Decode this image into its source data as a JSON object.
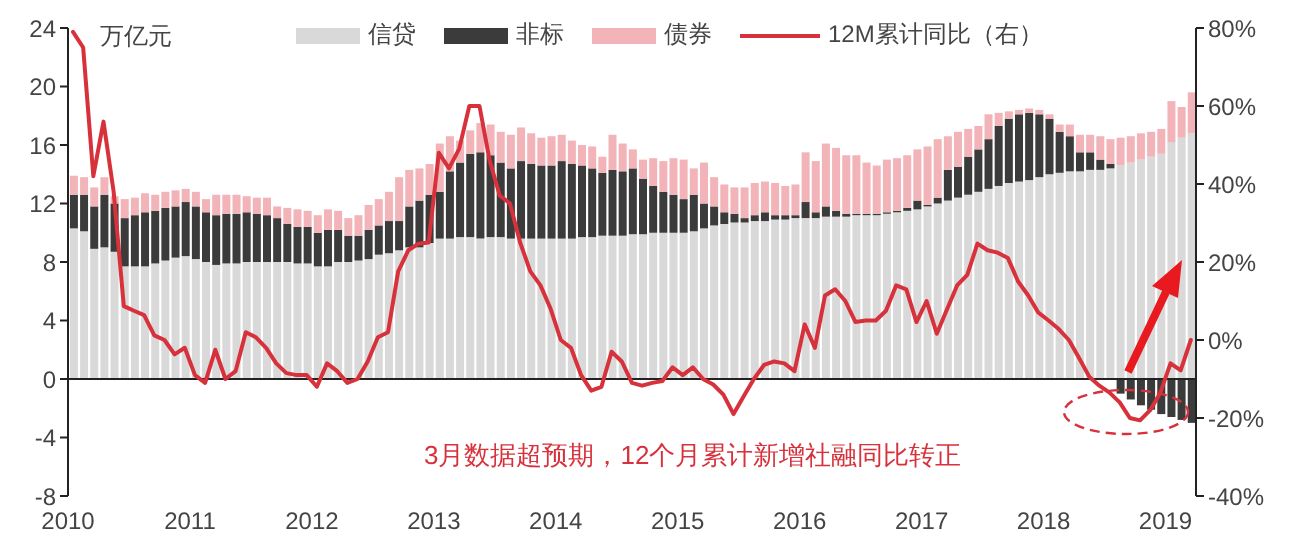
{
  "chart_data": {
    "type": "bar",
    "stacked": true,
    "ylabel": "万亿元",
    "legend": "top",
    "marker": "none",
    "line_style": "solid",
    "annotations": [
      "3月数据超预期，12个月累计新增社融同比转正"
    ],
    "x": [
      "2010-01-16",
      "2010-02-16",
      "2010-03-16",
      "2010-04-16",
      "2010-05-16",
      "2010-06-16",
      "2010-07-16",
      "2010-08-16",
      "2010-09-16",
      "2010-10-16",
      "2010-11-16",
      "2010-12-16",
      "2011-01-16",
      "2011-02-16",
      "2011-03-16",
      "2011-04-16",
      "2011-05-16",
      "2011-06-16",
      "2011-07-16",
      "2011-08-16",
      "2011-09-16",
      "2011-10-16",
      "2011-11-16",
      "2011-12-16",
      "2012-01-16",
      "2012-02-16",
      "2012-03-16",
      "2012-04-16",
      "2012-05-16",
      "2012-06-16",
      "2012-07-16",
      "2012-08-16",
      "2012-09-16",
      "2012-10-16",
      "2012-11-16",
      "2012-12-16",
      "2013-01-16",
      "2013-02-16",
      "2013-03-16",
      "2013-04-16",
      "2013-05-16",
      "2013-06-16",
      "2013-07-16",
      "2013-08-16",
      "2013-09-16",
      "2013-10-16",
      "2013-11-16",
      "2013-12-16",
      "2014-01-16",
      "2014-02-16",
      "2014-03-16",
      "2014-04-16",
      "2014-05-16",
      "2014-06-16",
      "2014-07-16",
      "2014-08-16",
      "2014-09-16",
      "2014-10-16",
      "2014-11-16",
      "2014-12-16",
      "2015-01-16",
      "2015-02-16",
      "2015-03-16",
      "2015-04-16",
      "2015-05-16",
      "2015-06-16",
      "2015-07-16",
      "2015-08-16",
      "2015-09-16",
      "2015-10-16",
      "2015-11-16",
      "2015-12-16",
      "2016-01-16",
      "2016-02-16",
      "2016-03-16",
      "2016-04-16",
      "2016-05-16",
      "2016-06-16",
      "2016-07-16",
      "2016-08-16",
      "2016-09-16",
      "2016-10-16",
      "2016-11-16",
      "2016-12-16",
      "2017-01-16",
      "2017-02-16",
      "2017-03-16",
      "2017-04-16",
      "2017-05-16",
      "2017-06-16",
      "2017-07-16",
      "2017-08-16",
      "2017-09-16",
      "2017-10-16",
      "2017-11-16",
      "2017-12-16",
      "2018-01-16",
      "2018-02-16",
      "2018-03-16",
      "2018-04-16",
      "2018-05-16",
      "2018-06-16",
      "2018-07-16",
      "2018-08-16",
      "2018-09-16",
      "2018-10-16",
      "2018-11-16",
      "2018-12-16",
      "2019-01-16",
      "2019-02-16",
      "2019-03-16"
    ],
    "xlim": [
      "2010-01",
      "2019-04"
    ],
    "xticks": [
      "2010",
      "2011",
      "2012",
      "2013",
      "2014",
      "2015",
      "2016",
      "2017",
      "2018",
      "2019"
    ],
    "ylim": [
      -8,
      24
    ],
    "yticks": [
      -8,
      -4,
      0,
      4,
      8,
      12,
      16,
      20,
      24
    ],
    "y2lim": [
      -40,
      80
    ],
    "y2ticks": [
      {
        "value": -40,
        "label": "-40%"
      },
      {
        "value": -20,
        "label": "-20%"
      },
      {
        "value": 0,
        "label": "0%"
      },
      {
        "value": 20,
        "label": "20%"
      },
      {
        "value": 40,
        "label": "40%"
      },
      {
        "value": 60,
        "label": "60%"
      },
      {
        "value": 80,
        "label": "80%"
      }
    ],
    "series": [
      {
        "name": "信贷",
        "color": "#d9d9d9",
        "values": [
          10.3,
          10.1,
          8.9,
          9.0,
          8.7,
          7.7,
          7.7,
          7.7,
          7.9,
          8.1,
          8.3,
          8.4,
          8.2,
          8.0,
          7.8,
          7.9,
          7.9,
          8.0,
          8.0,
          8.0,
          8.0,
          8.0,
          7.9,
          7.9,
          7.7,
          7.7,
          8.0,
          8.0,
          8.1,
          8.2,
          8.5,
          8.6,
          8.8,
          9.0,
          9.0,
          9.3,
          9.6,
          9.6,
          9.7,
          9.7,
          9.6,
          9.7,
          9.7,
          9.6,
          9.6,
          9.6,
          9.6,
          9.6,
          9.6,
          9.6,
          9.7,
          9.7,
          9.8,
          9.8,
          9.8,
          9.9,
          9.9,
          10.0,
          10.0,
          10.0,
          10.0,
          10.1,
          10.3,
          10.5,
          10.6,
          10.7,
          10.7,
          10.8,
          10.8,
          10.9,
          10.9,
          11.0,
          11.0,
          11.0,
          11.1,
          11.1,
          11.1,
          11.2,
          11.2,
          11.2,
          11.3,
          11.4,
          11.5,
          11.6,
          11.8,
          12.0,
          12.2,
          12.4,
          12.6,
          12.8,
          13.0,
          13.2,
          13.4,
          13.5,
          13.6,
          13.8,
          14.0,
          14.1,
          14.2,
          14.2,
          14.3,
          14.3,
          14.4,
          14.6,
          14.8,
          15.0,
          15.2,
          15.4,
          16.2,
          16.5,
          16.8
        ]
      },
      {
        "name": "非标",
        "color": "#3b3b3b",
        "values": [
          2.3,
          2.5,
          2.9,
          3.6,
          3.3,
          3.3,
          3.5,
          3.7,
          3.6,
          3.6,
          3.5,
          3.7,
          3.6,
          3.4,
          3.4,
          3.4,
          3.4,
          3.4,
          3.3,
          3.2,
          3.0,
          2.6,
          2.5,
          2.5,
          2.3,
          2.5,
          2.2,
          1.8,
          1.7,
          2.0,
          2.0,
          2.2,
          2.0,
          2.8,
          3.2,
          3.3,
          3.2,
          4.6,
          5.1,
          5.7,
          5.9,
          5.6,
          5.1,
          4.8,
          5.3,
          5.1,
          5.0,
          5.0,
          5.3,
          5.1,
          4.9,
          4.7,
          4.3,
          4.5,
          4.4,
          4.5,
          3.8,
          3.2,
          2.8,
          2.6,
          2.3,
          2.5,
          1.7,
          1.3,
          0.8,
          0.6,
          0.3,
          0.4,
          0.6,
          0.3,
          0.3,
          0.2,
          1.1,
          0.4,
          0.7,
          0.4,
          0.2,
          0.1,
          0.1,
          0.1,
          0.1,
          0.1,
          0.2,
          0.6,
          0.1,
          0.4,
          2.1,
          2.1,
          2.6,
          2.9,
          3.4,
          4.1,
          4.4,
          4.6,
          4.6,
          4.3,
          3.8,
          2.8,
          2.4,
          1.3,
          1.2,
          0.7,
          0.3,
          -1.0,
          -1.4,
          -1.8,
          -2.1,
          -2.4,
          -2.6,
          -2.8,
          -3.0
        ]
      },
      {
        "name": "债券",
        "color": "#f2b4b8",
        "values": [
          1.3,
          1.2,
          1.3,
          1.2,
          0.5,
          1.3,
          1.2,
          1.3,
          1.1,
          1.1,
          1.1,
          0.9,
          1.0,
          0.9,
          1.4,
          1.3,
          1.3,
          1.1,
          1.1,
          1.2,
          0.8,
          1.1,
          1.2,
          1.1,
          1.2,
          1.4,
          1.3,
          1.2,
          1.4,
          1.7,
          1.8,
          2.0,
          3.0,
          2.5,
          2.2,
          2.1,
          3.3,
          2.4,
          1.5,
          1.6,
          2.0,
          2.1,
          2.1,
          2.3,
          2.3,
          2.1,
          1.9,
          2.0,
          1.8,
          1.6,
          1.4,
          1.5,
          1.1,
          2.4,
          1.9,
          1.3,
          1.3,
          1.9,
          2.1,
          2.5,
          2.7,
          1.8,
          2.8,
          2.0,
          1.9,
          1.8,
          2.1,
          2.2,
          2.1,
          2.2,
          2.0,
          2.1,
          3.4,
          3.5,
          4.3,
          4.3,
          4.0,
          4.0,
          3.5,
          3.3,
          3.6,
          3.6,
          3.6,
          3.5,
          4.0,
          4.0,
          2.3,
          2.4,
          1.9,
          1.6,
          1.7,
          0.9,
          0.5,
          0.3,
          0.3,
          0.3,
          0.3,
          0.5,
          0.8,
          1.2,
          1.2,
          1.6,
          1.7,
          1.9,
          1.8,
          1.8,
          1.7,
          1.7,
          2.8,
          2.1,
          2.8
        ]
      },
      {
        "name": "12M累计同比（右）",
        "type": "line",
        "axis": "y2",
        "color": "#d7323c",
        "values": [
          79,
          75,
          42,
          56,
          38,
          8.7,
          7.5,
          6.4,
          1.2,
          0,
          -3.7,
          -2,
          -9,
          -11,
          -2.5,
          -10,
          -8,
          2,
          0.7,
          -2,
          -6,
          -8.5,
          -9,
          -9,
          -12,
          -6,
          -8,
          -11,
          -10,
          -5.5,
          0.7,
          2,
          17.6,
          23,
          24.7,
          25,
          48,
          44,
          49,
          60,
          60,
          46,
          37,
          35,
          25,
          17.6,
          14,
          8,
          0,
          -2,
          -9,
          -13,
          -12,
          -3,
          -5.5,
          -11,
          -11.7,
          -11,
          -10.5,
          -7,
          -9,
          -7,
          -10,
          -11.4,
          -14,
          -19,
          -14.4,
          -10,
          -6.4,
          -5.5,
          -6,
          -8,
          4,
          -2,
          11.4,
          13,
          10,
          4.6,
          5,
          5,
          7.5,
          14,
          13,
          4.6,
          10,
          1.6,
          7.8,
          14,
          16.7,
          24.7,
          23,
          22.4,
          21,
          15,
          11.4,
          7,
          5,
          2.8,
          0,
          -4.6,
          -9.4,
          -11.7,
          -13.5,
          -16,
          -20,
          -20.6,
          -18,
          -13.5,
          -6,
          -7.8,
          0
        ]
      }
    ]
  }
}
